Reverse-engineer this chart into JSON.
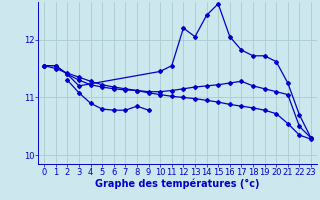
{
  "background_color": "#cce8ee",
  "grid_color": "#aacccc",
  "line_color": "#0000cc",
  "xlabel": "Graphe des températures (°c)",
  "xlabel_fontsize": 7,
  "tick_fontsize": 6,
  "xlim": [
    -0.5,
    23.5
  ],
  "ylim": [
    9.85,
    12.65
  ],
  "yticks": [
    10,
    11,
    12
  ],
  "xticks": [
    0,
    1,
    2,
    3,
    4,
    5,
    6,
    7,
    8,
    9,
    10,
    11,
    12,
    13,
    14,
    15,
    16,
    17,
    18,
    19,
    20,
    21,
    22,
    23
  ],
  "series": [
    {
      "x": [
        0,
        1,
        2,
        3,
        4,
        5,
        6,
        7,
        8,
        9,
        10,
        11,
        12,
        13,
        14,
        15,
        16,
        17,
        18,
        19,
        20,
        21,
        22,
        23
      ],
      "y": [
        11.55,
        11.55,
        11.4,
        11.3,
        11.22,
        11.18,
        11.15,
        11.13,
        11.12,
        11.1,
        11.1,
        11.12,
        11.15,
        11.18,
        11.2,
        11.22,
        11.25,
        11.28,
        11.2,
        11.15,
        11.1,
        11.05,
        10.5,
        10.3
      ]
    },
    {
      "comment": "Line starting at 0~11.55, goes to 3~11.2, jumps to 10~11.45, then 11~11.55, 12~12.2, 13~12.05, 14~12.42, 15~12.62, 16~12.05, 17~11.82, 18~11.72, 19~11.72, 20~11.62, 21~11.25, 22~10.7, 23~10.3",
      "x": [
        0,
        1,
        2,
        3,
        10,
        11,
        12,
        13,
        14,
        15,
        16,
        17,
        18,
        19,
        20,
        21,
        22,
        23
      ],
      "y": [
        11.55,
        11.55,
        11.4,
        11.2,
        11.45,
        11.55,
        12.2,
        12.05,
        12.42,
        12.62,
        12.05,
        11.82,
        11.72,
        11.72,
        11.62,
        11.25,
        10.7,
        10.3
      ]
    },
    {
      "x": [
        2,
        3,
        4,
        5,
        6,
        7,
        8,
        9
      ],
      "y": [
        11.3,
        11.08,
        10.9,
        10.8,
        10.78,
        10.78,
        10.85,
        10.78
      ]
    },
    {
      "x": [
        0,
        1,
        2,
        3,
        4,
        5,
        6,
        7,
        8,
        9,
        10,
        11,
        12,
        13,
        14,
        15,
        16,
        17,
        18,
        19,
        20,
        21,
        22,
        23
      ],
      "y": [
        11.55,
        11.5,
        11.42,
        11.35,
        11.28,
        11.22,
        11.18,
        11.15,
        11.12,
        11.08,
        11.05,
        11.02,
        11.0,
        10.98,
        10.95,
        10.92,
        10.88,
        10.85,
        10.82,
        10.78,
        10.72,
        10.55,
        10.35,
        10.28
      ]
    }
  ]
}
